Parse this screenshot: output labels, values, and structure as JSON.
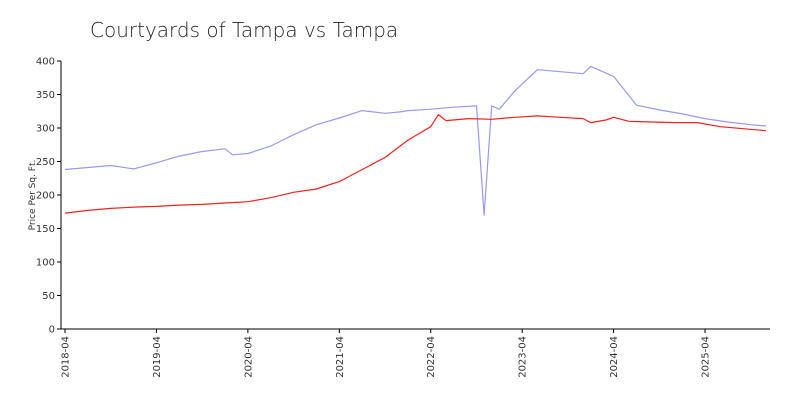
{
  "chart_data": {
    "type": "line",
    "title": "Courtyards of Tampa vs Tampa",
    "xlabel": "",
    "ylabel": "Price Per Sq. Ft.",
    "ylim": [
      0,
      400
    ],
    "xlim": [
      "2018-04",
      "2025-12"
    ],
    "yticks": [
      0,
      50,
      100,
      150,
      200,
      250,
      300,
      350,
      400
    ],
    "xticks": [
      "2018-04",
      "2019-04",
      "2020-04",
      "2021-04",
      "2022-04",
      "2023-04",
      "2024-04",
      "2025-04"
    ],
    "grid": false,
    "colors": {
      "series_0": "#9999ee",
      "series_1": "#ee2222"
    },
    "series": [
      {
        "x": [
          "2018-04",
          "2018-07",
          "2018-10",
          "2019-01",
          "2019-04",
          "2019-07",
          "2019-10",
          "2020-01",
          "2020-02",
          "2020-04",
          "2020-07",
          "2020-10",
          "2021-01",
          "2021-04",
          "2021-07",
          "2021-10",
          "2021-12",
          "2022-01",
          "2022-04",
          "2022-07",
          "2022-10",
          "2022-11",
          "2022-12",
          "2023-01",
          "2023-03",
          "2023-06",
          "2023-09",
          "2023-12",
          "2024-01",
          "2024-04",
          "2024-07",
          "2024-10",
          "2025-01",
          "2025-04",
          "2025-07",
          "2025-10",
          "2025-12"
        ],
        "y": [
          238,
          241,
          244,
          239,
          248,
          258,
          265,
          269,
          260,
          262,
          273,
          290,
          305,
          315,
          326,
          322,
          324,
          326,
          328,
          331,
          333,
          170,
          333,
          328,
          355,
          387,
          384,
          381,
          392,
          377,
          334,
          327,
          321,
          314,
          309,
          305,
          303
        ]
      },
      {
        "x": [
          "2018-04",
          "2018-07",
          "2018-10",
          "2019-01",
          "2019-04",
          "2019-07",
          "2019-10",
          "2020-01",
          "2020-04",
          "2020-07",
          "2020-10",
          "2021-01",
          "2021-04",
          "2021-07",
          "2021-10",
          "2022-01",
          "2022-04",
          "2022-05",
          "2022-06",
          "2022-09",
          "2022-12",
          "2023-03",
          "2023-06",
          "2023-09",
          "2023-12",
          "2024-01",
          "2024-03",
          "2024-04",
          "2024-06",
          "2024-09",
          "2024-12",
          "2025-03",
          "2025-06",
          "2025-09",
          "2025-12"
        ],
        "y": [
          173,
          177,
          180,
          182,
          183,
          185,
          186,
          188,
          190,
          196,
          204,
          209,
          220,
          238,
          256,
          282,
          302,
          320,
          311,
          314,
          313,
          316,
          318,
          316,
          314,
          308,
          312,
          316,
          310,
          309,
          308,
          308,
          302,
          299,
          296
        ]
      }
    ]
  }
}
